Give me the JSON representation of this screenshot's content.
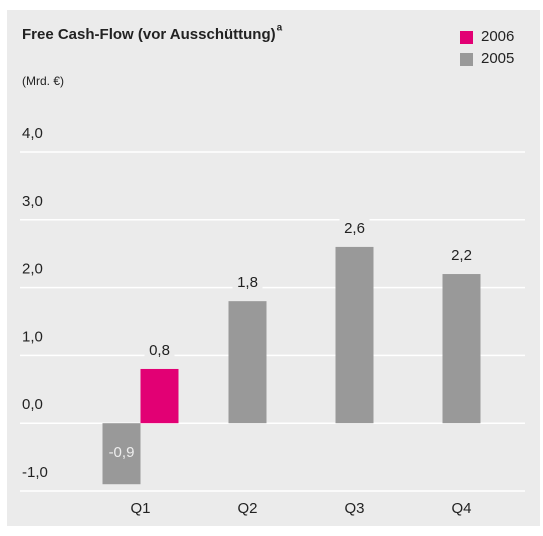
{
  "chart_data": {
    "type": "bar",
    "title": "Free Cash-Flow (vor Ausschüttung)",
    "title_superscript": "a",
    "subtitle": "(Mrd. €)",
    "categories": [
      "Q1",
      "Q2",
      "Q3",
      "Q4"
    ],
    "series": [
      {
        "name": "2006",
        "color": "#e20074",
        "values": [
          0.8,
          null,
          null,
          null
        ],
        "value_labels": [
          "0,8",
          null,
          null,
          null
        ]
      },
      {
        "name": "2005",
        "color": "#999999",
        "values": [
          -0.9,
          1.8,
          2.6,
          2.2
        ],
        "value_labels": [
          "-0,9",
          "1,8",
          "2,6",
          "2,2"
        ]
      }
    ],
    "ylim": [
      -1,
      4
    ],
    "yticks": [
      {
        "value": -1,
        "label": "-1,0"
      },
      {
        "value": 0,
        "label": "0,0"
      },
      {
        "value": 1,
        "label": "1,0"
      },
      {
        "value": 2,
        "label": "2,0"
      },
      {
        "value": 3,
        "label": "3,0"
      },
      {
        "value": 4,
        "label": "4,0"
      }
    ],
    "grid": true,
    "legend_position": "top-right",
    "background": "#ebebeb"
  }
}
